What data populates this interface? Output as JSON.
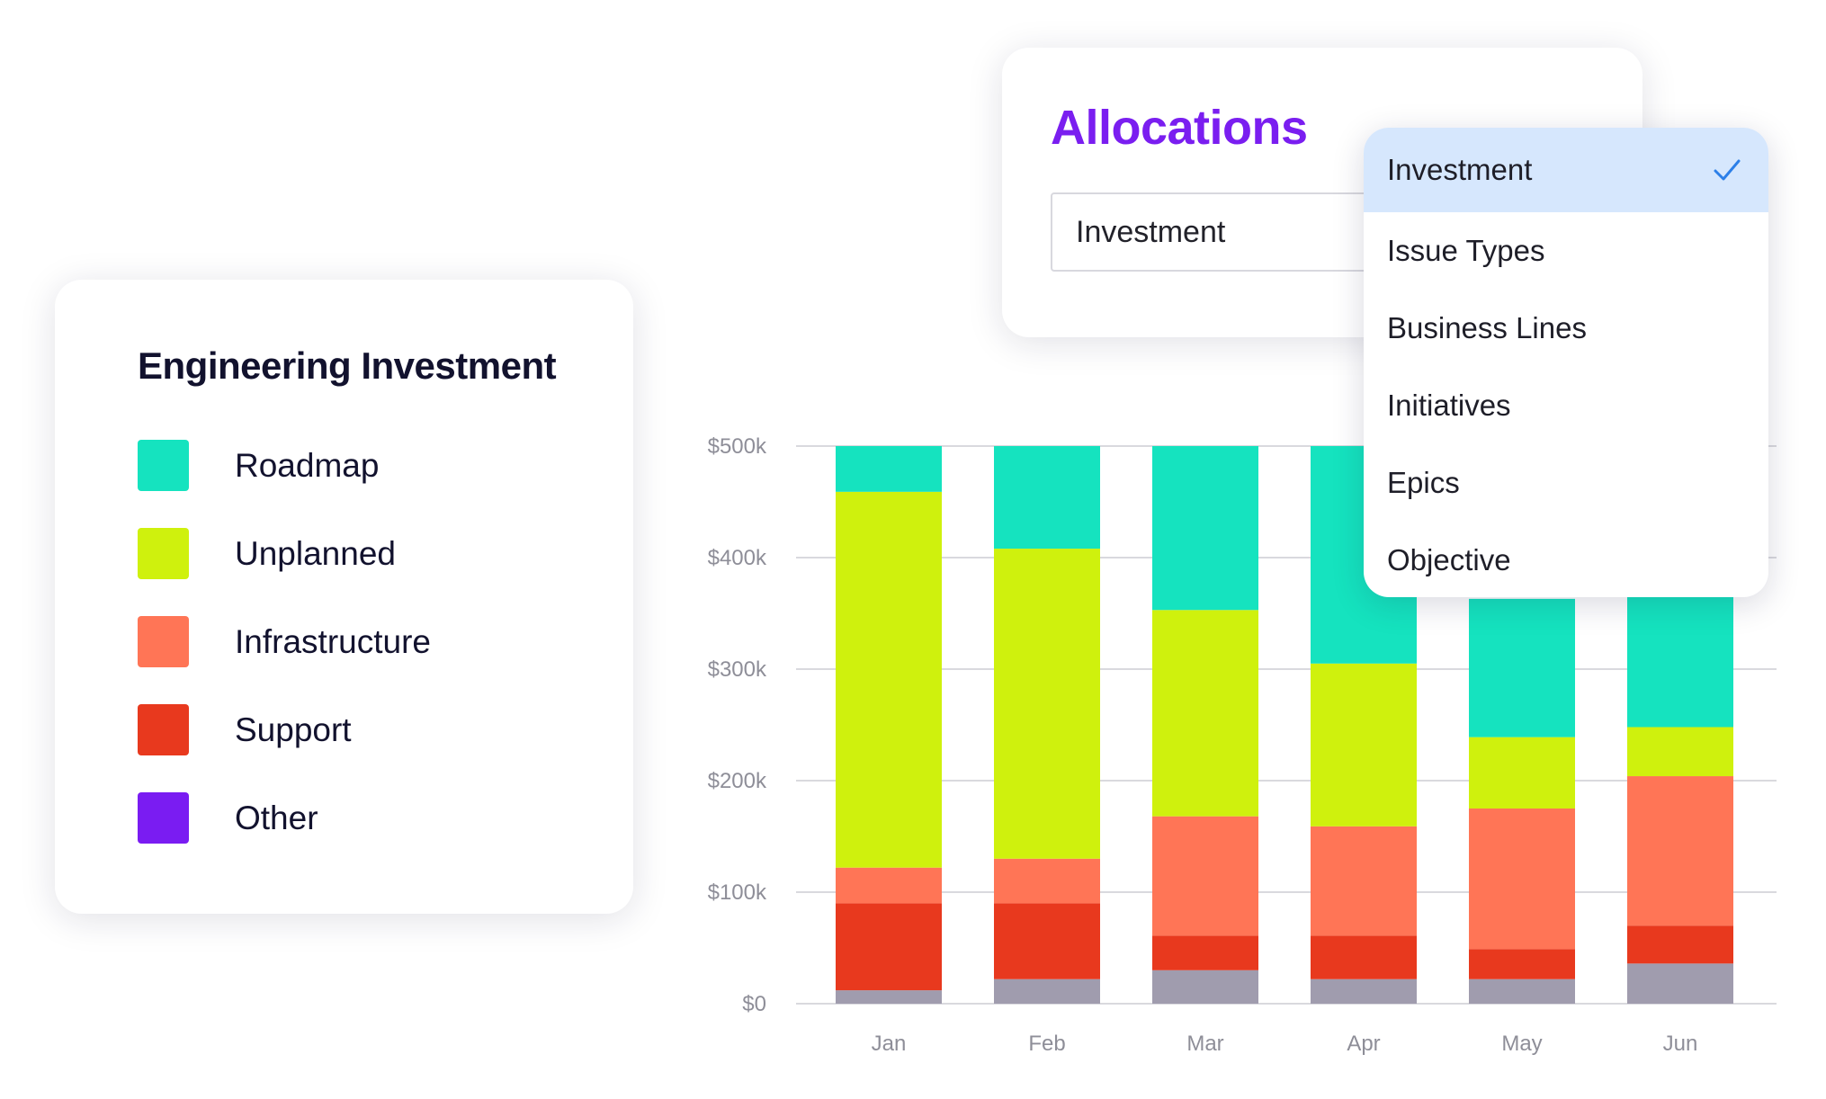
{
  "legend": {
    "title": "Engineering Investment",
    "items": [
      {
        "label": "Roadmap",
        "color": "#15e3bf"
      },
      {
        "label": "Unplanned",
        "color": "#cff10d"
      },
      {
        "label": "Infrastructure",
        "color": "#ff7556"
      },
      {
        "label": "Support",
        "color": "#e8391e"
      },
      {
        "label": "Other",
        "color": "#7a1cf2"
      }
    ]
  },
  "allocations": {
    "title": "Allocations",
    "select_value": "Investment",
    "options": [
      {
        "label": "Investment",
        "selected": true
      },
      {
        "label": "Issue Types",
        "selected": false
      },
      {
        "label": "Business Lines",
        "selected": false
      },
      {
        "label": "Initiatives",
        "selected": false
      },
      {
        "label": "Epics",
        "selected": false
      },
      {
        "label": "Objective",
        "selected": false
      }
    ],
    "check_icon": "checkmark-icon"
  },
  "chart_data": {
    "type": "bar",
    "stacked": true,
    "categories": [
      "Jan",
      "Feb",
      "Mar",
      "Apr",
      "May",
      "Jun"
    ],
    "yticks": [
      "$0",
      "$100k",
      "$200k",
      "$300k",
      "$400k",
      "$500k"
    ],
    "ylim": [
      0,
      500000
    ],
    "grid": true,
    "series": [
      {
        "key": "base",
        "color": "#a09cae",
        "values": [
          12000,
          22000,
          30000,
          22000,
          22000,
          36000
        ]
      },
      {
        "key": "support",
        "color": "#e8391e",
        "values": [
          78000,
          68000,
          31000,
          39000,
          27000,
          34000
        ]
      },
      {
        "key": "infrastructure",
        "color": "#ff7556",
        "values": [
          32000,
          40000,
          107000,
          98000,
          126000,
          134000
        ]
      },
      {
        "key": "unplanned",
        "color": "#cff10d",
        "values": [
          337000,
          278000,
          185000,
          146000,
          64000,
          44000
        ]
      },
      {
        "key": "roadmap",
        "color": "#15e3bf",
        "values": [
          41000,
          92000,
          147000,
          195000,
          124000,
          117000
        ]
      }
    ]
  }
}
